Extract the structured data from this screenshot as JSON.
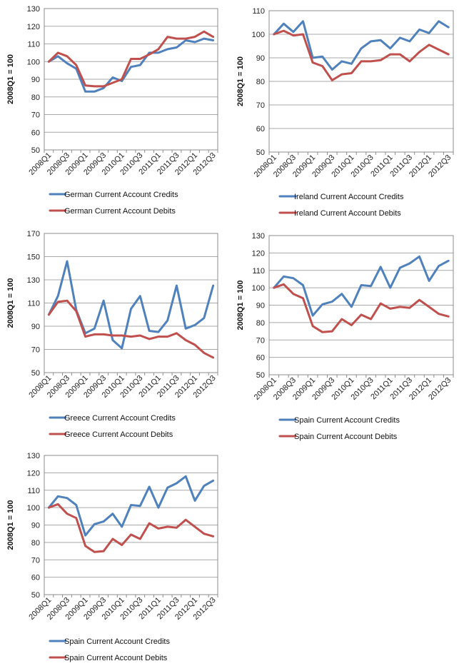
{
  "chart_data": [
    {
      "type": "line",
      "ylabel": "2008Q1 = 100",
      "ylim": [
        50,
        130
      ],
      "yticks": [
        50,
        60,
        70,
        80,
        90,
        100,
        110,
        120,
        130
      ],
      "grid": true,
      "legend_placement": "bottom",
      "x": [
        "2008Q1",
        "2008Q2",
        "2008Q3",
        "2008Q4",
        "2009Q1",
        "2009Q2",
        "2009Q3",
        "2009Q4",
        "2010Q1",
        "2010Q2",
        "2010Q3",
        "2010Q4",
        "2011Q1",
        "2011Q2",
        "2011Q3",
        "2011Q4",
        "2012Q1",
        "2012Q2",
        "2012Q3"
      ],
      "xtick_labels": [
        "2008Q1",
        "",
        "2008Q3",
        "",
        "2009Q1",
        "",
        "2009Q3",
        "",
        "2010Q1",
        "",
        "2010Q3",
        "",
        "2011Q1",
        "",
        "2011Q3",
        "",
        "2012Q1",
        "",
        "2012Q3"
      ],
      "series": [
        {
          "name": "German Current Account Credits",
          "color": "#4f81bd",
          "values": [
            100,
            103,
            99,
            96,
            83,
            83,
            85,
            91,
            89,
            97,
            98,
            105,
            105,
            107,
            108,
            112,
            111,
            113,
            112
          ]
        },
        {
          "name": "German Current Account Debits",
          "color": "#c0504d",
          "values": [
            100,
            105,
            103,
            98,
            86.5,
            86,
            86,
            88,
            90,
            101.5,
            101.5,
            104,
            107,
            114,
            113,
            113,
            114,
            117,
            114
          ]
        }
      ]
    },
    {
      "type": "line",
      "ylabel": "2008Q1 = 100",
      "ylim": [
        50,
        110
      ],
      "yticks": [
        50,
        60,
        70,
        80,
        90,
        100,
        110
      ],
      "grid": true,
      "legend_placement": "bottom",
      "x": [
        "2008Q1",
        "2008Q2",
        "2008Q3",
        "2008Q4",
        "2009Q1",
        "2009Q2",
        "2009Q3",
        "2009Q4",
        "2010Q1",
        "2010Q2",
        "2010Q3",
        "2010Q4",
        "2011Q1",
        "2011Q2",
        "2011Q3",
        "2011Q4",
        "2012Q1",
        "2012Q2",
        "2012Q3"
      ],
      "xtick_labels": [
        "2008Q1",
        "",
        "2008Q3",
        "",
        "2009Q1",
        "",
        "2009Q3",
        "",
        "2010Q1",
        "",
        "2010Q3",
        "",
        "2011Q1",
        "",
        "2011Q3",
        "",
        "2012Q1",
        "",
        "2012Q3"
      ],
      "series": [
        {
          "name": "Ireland Current Account Credits",
          "color": "#4f81bd",
          "values": [
            100,
            104.5,
            101,
            105.5,
            90,
            90.5,
            85,
            88.5,
            87.5,
            94,
            97,
            97.5,
            94,
            98.5,
            97,
            102,
            100.5,
            105.5,
            103
          ]
        },
        {
          "name": "Ireland Current Account Debits",
          "color": "#c0504d",
          "values": [
            100,
            101.5,
            99.5,
            100,
            88,
            86.5,
            80.5,
            83,
            83.5,
            88.5,
            88.5,
            89,
            91.5,
            91.5,
            88.5,
            92.5,
            95.5,
            93.5,
            91.5
          ]
        }
      ]
    },
    {
      "type": "line",
      "ylabel": "2008Q1 = 100",
      "ylim": [
        50,
        170
      ],
      "yticks": [
        50,
        70,
        90,
        110,
        130,
        150,
        170
      ],
      "grid": true,
      "legend_placement": "bottom",
      "x": [
        "2008Q1",
        "2008Q2",
        "2008Q3",
        "2008Q4",
        "2009Q1",
        "2009Q2",
        "2009Q3",
        "2009Q4",
        "2010Q1",
        "2010Q2",
        "2010Q3",
        "2010Q4",
        "2011Q1",
        "2011Q2",
        "2011Q3",
        "2011Q4",
        "2012Q1",
        "2012Q2",
        "2012Q3"
      ],
      "xtick_labels": [
        "2008Q1",
        "",
        "2008Q3",
        "",
        "2009Q1",
        "",
        "2009Q3",
        "",
        "2010Q1",
        "",
        "2010Q3",
        "",
        "2011Q1",
        "",
        "2011Q3",
        "",
        "2012Q1",
        "",
        "2012Q3"
      ],
      "series": [
        {
          "name": "Greece Current Account Credits",
          "color": "#4f81bd",
          "values": [
            100,
            116,
            146,
            104,
            84,
            88,
            112,
            78,
            71,
            105,
            116,
            86,
            85,
            95,
            125,
            88,
            91,
            97,
            125
          ]
        },
        {
          "name": "Greece Current Account Debits",
          "color": "#c0504d",
          "values": [
            100,
            111,
            112,
            103,
            81,
            83,
            83,
            82,
            82,
            81,
            82,
            79,
            81,
            81,
            84,
            78,
            74,
            67,
            63
          ]
        }
      ]
    },
    {
      "type": "line",
      "ylabel": "2008Q1 = 100",
      "ylim": [
        50,
        130
      ],
      "yticks": [
        50,
        60,
        70,
        80,
        90,
        100,
        110,
        120,
        130
      ],
      "grid": true,
      "legend_placement": "bottom",
      "x": [
        "2008Q1",
        "2008Q2",
        "2008Q3",
        "2008Q4",
        "2009Q1",
        "2009Q2",
        "2009Q3",
        "2009Q4",
        "2010Q1",
        "2010Q2",
        "2010Q3",
        "2010Q4",
        "2011Q1",
        "2011Q2",
        "2011Q3",
        "2011Q4",
        "2012Q1",
        "2012Q2",
        "2012Q3"
      ],
      "xtick_labels": [
        "2008Q1",
        "",
        "2008Q3",
        "",
        "2009Q1",
        "",
        "2009Q3",
        "",
        "2010Q1",
        "",
        "2010Q3",
        "",
        "2011Q1",
        "",
        "2011Q3",
        "",
        "2012Q1",
        "",
        "2012Q3"
      ],
      "series": [
        {
          "name": "Spain Current Account Credits",
          "color": "#4f81bd",
          "values": [
            100,
            106.5,
            105.5,
            101.5,
            84,
            90.5,
            92,
            96.5,
            89,
            101.5,
            101,
            112,
            100,
            111.5,
            114,
            118,
            104,
            112.5,
            115.5
          ]
        },
        {
          "name": "Spain Current Account Debits",
          "color": "#c0504d",
          "values": [
            100,
            102,
            96.5,
            94,
            78,
            74.5,
            75,
            82,
            78.5,
            84.5,
            82,
            91,
            88,
            89,
            88.5,
            93,
            89,
            85,
            83.5
          ]
        }
      ]
    },
    {
      "type": "line",
      "ylabel": "2008Q1 = 100",
      "ylim": [
        50,
        130
      ],
      "yticks": [
        50,
        60,
        70,
        80,
        90,
        100,
        110,
        120,
        130
      ],
      "grid": true,
      "legend_placement": "bottom",
      "x": [
        "2008Q1",
        "2008Q2",
        "2008Q3",
        "2008Q4",
        "2009Q1",
        "2009Q2",
        "2009Q3",
        "2009Q4",
        "2010Q1",
        "2010Q2",
        "2010Q3",
        "2010Q4",
        "2011Q1",
        "2011Q2",
        "2011Q3",
        "2011Q4",
        "2012Q1",
        "2012Q2",
        "2012Q3"
      ],
      "xtick_labels": [
        "2008Q1",
        "",
        "2008Q3",
        "",
        "2009Q1",
        "",
        "2009Q3",
        "",
        "2010Q1",
        "",
        "2010Q3",
        "",
        "2011Q1",
        "",
        "2011Q3",
        "",
        "2012Q1",
        "",
        "2012Q3"
      ],
      "series": [
        {
          "name": "Spain Current Account Credits",
          "color": "#4f81bd",
          "values": [
            100,
            106.5,
            105.5,
            101.5,
            84,
            90.5,
            92,
            96.5,
            89,
            101.5,
            101,
            112,
            100,
            111.5,
            114,
            118,
            104,
            112.5,
            115.5
          ]
        },
        {
          "name": "Spain Current Account Debits",
          "color": "#c0504d",
          "values": [
            100,
            102,
            96.5,
            94,
            78,
            74.5,
            75,
            82,
            78.5,
            84.5,
            82,
            91,
            88,
            89,
            88.5,
            93,
            89,
            85,
            83.5
          ]
        }
      ]
    }
  ]
}
